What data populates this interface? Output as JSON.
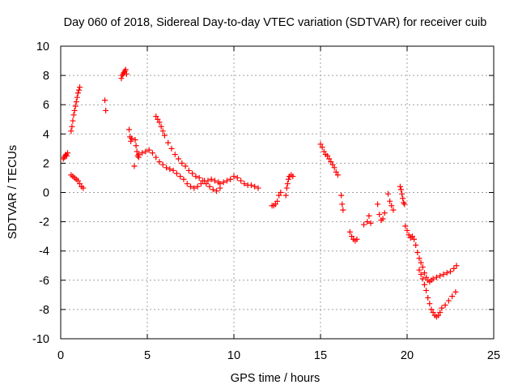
{
  "chart_data": {
    "type": "scatter",
    "title": "Day 060 of 2018, Sidereal Day-to-day VTEC variation (SDTVAR) for receiver cuib",
    "xlabel": "GPS time / hours",
    "ylabel": "SDTVAR / TECUs",
    "xlim": [
      0,
      25
    ],
    "ylim": [
      -10,
      10
    ],
    "xticks": [
      0,
      5,
      10,
      15,
      20,
      25
    ],
    "yticks": [
      -10,
      -8,
      -6,
      -4,
      -2,
      0,
      2,
      4,
      6,
      8,
      10
    ],
    "grid": true,
    "marker": "plus",
    "color": "#ff0000",
    "segments": [
      {
        "name": "s1",
        "x": [
          0.15,
          0.2,
          0.25,
          0.3,
          0.35,
          0.4
        ],
        "y": [
          2.3,
          2.4,
          2.5,
          2.6,
          2.5,
          2.7
        ]
      },
      {
        "name": "s2",
        "x": [
          0.6,
          0.65,
          0.7,
          0.75,
          0.8,
          0.85,
          0.9,
          0.95,
          1.0,
          1.05,
          1.1
        ],
        "y": [
          4.2,
          4.5,
          4.9,
          5.3,
          5.6,
          5.9,
          6.2,
          6.5,
          6.8,
          7.0,
          7.2
        ]
      },
      {
        "name": "s3",
        "x": [
          0.6,
          0.7,
          0.8,
          0.9,
          1.0,
          1.1,
          1.2,
          1.3
        ],
        "y": [
          1.2,
          1.1,
          1.0,
          0.9,
          0.8,
          0.6,
          0.4,
          0.3
        ]
      },
      {
        "name": "s4",
        "x": [
          2.55,
          2.6
        ],
        "y": [
          6.3,
          5.6
        ]
      },
      {
        "name": "s5",
        "x": [
          3.5,
          3.55,
          3.6,
          3.65,
          3.7,
          3.75,
          3.8
        ],
        "y": [
          7.8,
          8.0,
          8.1,
          8.2,
          8.3,
          8.4,
          8.1
        ]
      },
      {
        "name": "s6",
        "x": [
          3.95,
          4.0,
          4.05,
          4.1
        ],
        "y": [
          4.3,
          3.8,
          3.5,
          3.7
        ]
      },
      {
        "name": "s7",
        "x": [
          4.25,
          4.3,
          4.35,
          4.4,
          4.45,
          4.5
        ],
        "y": [
          1.8,
          3.6,
          3.2,
          2.8,
          2.5,
          2.4
        ]
      },
      {
        "name": "s8",
        "x": [
          4.5,
          4.7,
          4.9,
          5.1,
          5.3,
          5.5,
          5.7,
          5.9,
          6.1,
          6.3,
          6.5,
          6.7,
          6.9,
          7.1,
          7.3,
          7.5,
          7.7,
          7.9,
          8.1,
          8.3,
          8.5,
          8.7,
          8.9,
          9.1
        ],
        "y": [
          2.6,
          2.7,
          2.8,
          2.9,
          2.7,
          2.4,
          2.1,
          1.9,
          1.7,
          1.6,
          1.5,
          1.3,
          1.1,
          0.9,
          0.6,
          0.4,
          0.3,
          0.4,
          0.6,
          0.8,
          0.8,
          0.9,
          0.8,
          0.7
        ]
      },
      {
        "name": "s9",
        "x": [
          5.5,
          5.6,
          5.7,
          5.8,
          5.9,
          6.0,
          6.2,
          6.4,
          6.6,
          6.8,
          7.0,
          7.2,
          7.4,
          7.6,
          7.8,
          8.0,
          8.2,
          8.4,
          8.6,
          8.8,
          9.0,
          9.2
        ],
        "y": [
          5.2,
          5.0,
          4.8,
          4.5,
          4.2,
          3.9,
          3.4,
          3.0,
          2.6,
          2.3,
          2.0,
          1.8,
          1.5,
          1.3,
          1.1,
          1.0,
          0.8,
          0.6,
          0.4,
          0.2,
          0.1,
          0.3
        ]
      },
      {
        "name": "s10",
        "x": [
          9.2,
          9.4,
          9.6,
          9.8,
          10.0,
          10.2,
          10.4,
          10.6,
          10.8,
          11.0,
          11.2,
          11.4
        ],
        "y": [
          0.6,
          0.7,
          0.8,
          0.9,
          1.1,
          1.0,
          0.8,
          0.6,
          0.5,
          0.5,
          0.4,
          0.3
        ]
      },
      {
        "name": "s11",
        "x": [
          12.2,
          12.3,
          12.4,
          12.5,
          12.6,
          12.7
        ],
        "y": [
          -0.9,
          -0.9,
          -0.8,
          -0.6,
          -0.2,
          0.0
        ]
      },
      {
        "name": "s12",
        "x": [
          13.0,
          13.05,
          13.1,
          13.15,
          13.2,
          13.3,
          13.4
        ],
        "y": [
          -0.2,
          0.3,
          0.6,
          0.9,
          1.1,
          1.2,
          1.1
        ]
      },
      {
        "name": "s13",
        "x": [
          15.0,
          15.1,
          15.2,
          15.3,
          15.4,
          15.5,
          15.6,
          15.7,
          15.8,
          15.9,
          16.0
        ],
        "y": [
          3.3,
          3.1,
          2.8,
          2.6,
          2.5,
          2.3,
          2.1,
          1.9,
          1.7,
          1.4,
          1.2
        ]
      },
      {
        "name": "s14",
        "x": [
          16.2,
          16.25,
          16.3
        ],
        "y": [
          -0.2,
          -0.8,
          -1.2
        ]
      },
      {
        "name": "s15",
        "x": [
          16.7,
          16.8,
          16.9,
          17.0,
          17.1
        ],
        "y": [
          -2.7,
          -3.0,
          -3.2,
          -3.3,
          -3.2
        ]
      },
      {
        "name": "s16",
        "x": [
          17.5,
          17.7,
          17.8,
          17.9
        ],
        "y": [
          -2.2,
          -2.0,
          -1.6,
          -2.1
        ]
      },
      {
        "name": "s17",
        "x": [
          18.3,
          18.4,
          18.5,
          18.6,
          18.7
        ],
        "y": [
          -0.8,
          -1.5,
          -1.9,
          -1.8,
          -1.4
        ]
      },
      {
        "name": "s18",
        "x": [
          18.9,
          19.0,
          19.1,
          19.2
        ],
        "y": [
          -0.1,
          -0.6,
          -0.9,
          -1.2
        ]
      },
      {
        "name": "s19",
        "x": [
          19.6,
          19.65,
          19.7,
          19.75,
          19.8,
          19.85
        ],
        "y": [
          0.4,
          0.2,
          -0.1,
          -0.4,
          -0.7,
          -0.8
        ]
      },
      {
        "name": "s20",
        "x": [
          19.9,
          20.0,
          20.1,
          20.2,
          20.3,
          20.4,
          20.5,
          20.6,
          20.7,
          20.8,
          20.9,
          21.0,
          21.1,
          21.2,
          21.3,
          21.4
        ],
        "y": [
          -2.3,
          -2.6,
          -2.9,
          -3.1,
          -3.0,
          -3.2,
          -3.6,
          -4.1,
          -4.5,
          -4.8,
          -5.1,
          -5.5,
          -5.8,
          -6.0,
          -6.1,
          -6.0
        ]
      },
      {
        "name": "s21",
        "x": [
          20.7,
          20.8,
          20.9,
          21.0,
          21.1,
          21.2,
          21.3,
          21.4,
          21.5,
          21.6,
          21.7,
          21.8,
          21.9,
          22.0,
          22.2,
          22.4,
          22.6,
          22.8
        ],
        "y": [
          -5.3,
          -5.6,
          -5.9,
          -6.3,
          -6.7,
          -7.2,
          -7.6,
          -8.0,
          -8.2,
          -8.4,
          -8.5,
          -8.4,
          -8.2,
          -7.9,
          -7.7,
          -7.4,
          -7.1,
          -6.8
        ]
      },
      {
        "name": "s22",
        "x": [
          21.5,
          21.7,
          21.9,
          22.1,
          22.3,
          22.5,
          22.7,
          22.85
        ],
        "y": [
          -5.9,
          -5.8,
          -5.7,
          -5.6,
          -5.5,
          -5.4,
          -5.2,
          -5.0
        ]
      }
    ]
  }
}
